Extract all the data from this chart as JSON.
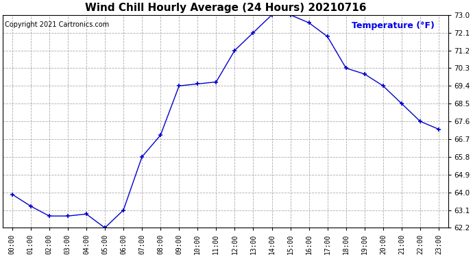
{
  "title": "Wind Chill Hourly Average (24 Hours) 20210716",
  "copyright_text": "Copyright 2021 Cartronics.com",
  "ylabel": "Temperature (°F)",
  "ylabel_color": "#0000ee",
  "hours": [
    "00:00",
    "01:00",
    "02:00",
    "03:00",
    "04:00",
    "05:00",
    "06:00",
    "07:00",
    "08:00",
    "09:00",
    "10:00",
    "11:00",
    "12:00",
    "13:00",
    "14:00",
    "15:00",
    "16:00",
    "17:00",
    "18:00",
    "19:00",
    "20:00",
    "21:00",
    "22:00",
    "23:00"
  ],
  "values": [
    63.9,
    63.3,
    62.8,
    62.8,
    62.9,
    62.2,
    63.1,
    65.8,
    66.9,
    69.4,
    69.5,
    69.6,
    71.2,
    72.1,
    73.0,
    73.0,
    72.6,
    71.9,
    70.3,
    70.0,
    69.4,
    68.5,
    67.6,
    67.2
  ],
  "line_color": "#0000cc",
  "marker": "+",
  "marker_size": 5,
  "marker_color": "#0000cc",
  "ylim_min": 62.2,
  "ylim_max": 73.0,
  "ytick_values": [
    62.2,
    63.1,
    64.0,
    64.9,
    65.8,
    66.7,
    67.6,
    68.5,
    69.4,
    70.3,
    71.2,
    72.1,
    73.0
  ],
  "ytick_labels": [
    "62.2",
    "63.1",
    "64.0",
    "64.9",
    "65.8",
    "66.7",
    "67.6",
    "68.5",
    "69.4",
    "70.3",
    "71.2",
    "72.1",
    "73.0"
  ],
  "background_color": "#ffffff",
  "plot_bg_color": "#ffffff",
  "grid_color": "#aaaaaa",
  "grid_style": "--",
  "title_fontsize": 11,
  "copyright_fontsize": 7,
  "ylabel_fontsize": 9,
  "tick_fontsize": 7.5,
  "xtick_fontsize": 7
}
